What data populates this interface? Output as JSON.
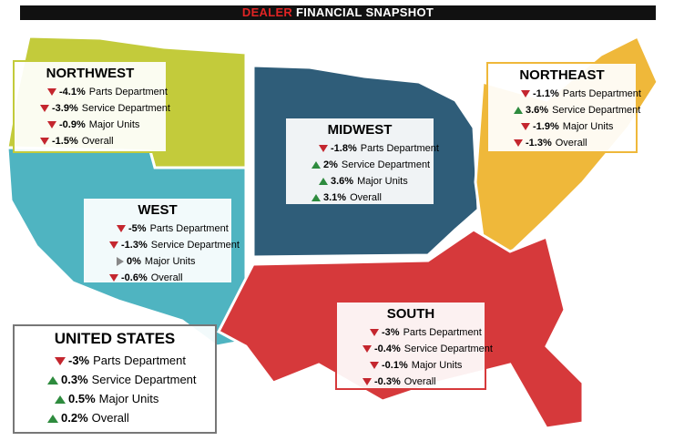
{
  "header": {
    "highlight": "DEALER",
    "title": "FINANCIAL SNAPSHOT"
  },
  "regions": [
    {
      "name": "NORTHWEST",
      "items": [
        {
          "change": "-4.1%",
          "label": "Parts Department"
        },
        {
          "change": "-3.9%",
          "label": "Service Department"
        },
        {
          "change": "-0.9%",
          "label": "Major Units"
        },
        {
          "change": "-1.5%",
          "label": "Overall"
        }
      ]
    },
    {
      "name": "MIDWEST",
      "items": [
        {
          "change": "-1.8%",
          "label": "Parts Department"
        },
        {
          "change": "2%",
          "label": "Service Department"
        },
        {
          "change": "3.6%",
          "label": "Major Units"
        },
        {
          "change": "3.1%",
          "label": "Overall"
        }
      ]
    },
    {
      "name": "NORTHEAST",
      "items": [
        {
          "change": "-1.1%",
          "label": "Parts Department"
        },
        {
          "change": "3.6%",
          "label": "Service Department"
        },
        {
          "change": "-1.9%",
          "label": "Major Units"
        },
        {
          "change": "-1.3%",
          "label": "Overall"
        }
      ]
    },
    {
      "name": "WEST",
      "items": [
        {
          "change": "-5%",
          "label": "Parts Department"
        },
        {
          "change": "-1.3%",
          "label": "Service Department"
        },
        {
          "change": "0%",
          "label": "Major Units"
        },
        {
          "change": "-0.6%",
          "label": "Overall"
        }
      ]
    },
    {
      "name": "SOUTH",
      "items": [
        {
          "change": "-3%",
          "label": "Parts Department"
        },
        {
          "change": "-0.4%",
          "label": "Service Department"
        },
        {
          "change": "-0.1%",
          "label": "Major Units"
        },
        {
          "change": "-0.3%",
          "label": "Overall"
        }
      ]
    },
    {
      "name": "UNITED STATES",
      "items": [
        {
          "change": "-3%",
          "label": "Parts Department"
        },
        {
          "change": "0.3%",
          "label": "Service Department"
        },
        {
          "change": "0.5%",
          "label": "Major Units"
        },
        {
          "change": "0.2%",
          "label": "Overall"
        }
      ]
    }
  ]
}
